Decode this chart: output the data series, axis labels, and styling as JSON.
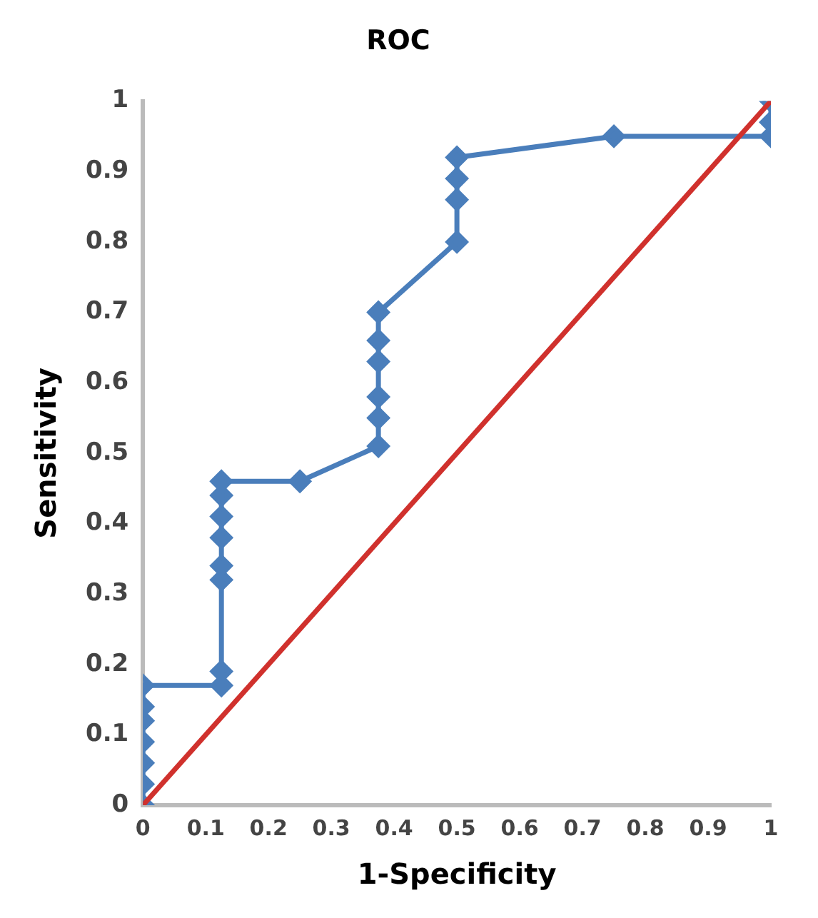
{
  "chart_data": {
    "type": "line",
    "title": "ROC",
    "xlabel": "1-Specificity",
    "ylabel": "Sensitivity",
    "xlim": [
      0,
      1
    ],
    "xticks": [
      0,
      0.1,
      0.2,
      0.3,
      0.4,
      0.5,
      0.6,
      0.7,
      0.8,
      0.9,
      1
    ],
    "ylim": [
      0,
      1
    ],
    "yticks": [
      0,
      0.1,
      0.2,
      0.3,
      0.4,
      0.5,
      0.6,
      0.7,
      0.8,
      0.9,
      1
    ],
    "grid": false,
    "legend": false,
    "series": [
      {
        "color": "#4a7ebb",
        "marker": "diamond",
        "x": [
          0,
          0,
          0,
          0,
          0,
          0,
          0,
          0.125,
          0.125,
          0.125,
          0.125,
          0.125,
          0.125,
          0.125,
          0.125,
          0.25,
          0.375,
          0.375,
          0.375,
          0.375,
          0.375,
          0.375,
          0.5,
          0.5,
          0.5,
          0.5,
          0.75,
          1,
          1,
          1
        ],
        "values": [
          0,
          0.03,
          0.06,
          0.09,
          0.12,
          0.14,
          0.17,
          0.17,
          0.19,
          0.32,
          0.34,
          0.38,
          0.41,
          0.44,
          0.46,
          0.46,
          0.51,
          0.55,
          0.58,
          0.63,
          0.66,
          0.7,
          0.8,
          0.86,
          0.89,
          0.92,
          0.95,
          0.95,
          0.97,
          1
        ]
      },
      {
        "color": "#d0312d",
        "marker": "none",
        "x": [
          0,
          1
        ],
        "values": [
          0,
          1
        ]
      }
    ]
  }
}
